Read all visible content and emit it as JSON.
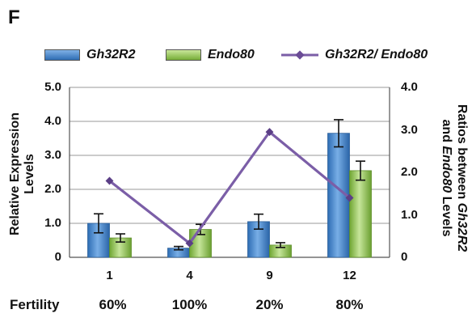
{
  "panel_label": "F",
  "chart_data": {
    "type": "bar",
    "categories": [
      "1",
      "4",
      "9",
      "12"
    ],
    "series": [
      {
        "name": "Gh32R2",
        "kind": "bar",
        "axis": "left",
        "values": [
          1.0,
          0.27,
          1.05,
          3.65
        ],
        "errors": [
          0.28,
          0.05,
          0.22,
          0.4
        ],
        "color": "#3b7fc4"
      },
      {
        "name": "Endo80",
        "kind": "bar",
        "axis": "left",
        "values": [
          0.57,
          0.82,
          0.36,
          2.55
        ],
        "errors": [
          0.12,
          0.15,
          0.07,
          0.28
        ],
        "color": "#8fc34a"
      },
      {
        "name": "Gh32R2/ Endo80",
        "kind": "line",
        "axis": "right",
        "values": [
          1.8,
          0.33,
          2.95,
          1.4
        ],
        "color": "#7b5ea7"
      }
    ],
    "ylabel": "Relative Expression Levels",
    "ylim": [
      0,
      5
    ],
    "yticks": [
      "0",
      "1.0",
      "2.0",
      "3.0",
      "4.0",
      "5.0"
    ],
    "y2label_line1_prefix": "Ratios between ",
    "y2label_line1_italic": "Gh32R2",
    "y2label_line2_prefix": "and ",
    "y2label_line2_italic": "Endo80",
    "y2label_line2_suffix": " Levels",
    "y2lim": [
      0,
      4
    ],
    "y2ticks": [
      "0",
      "1.0",
      "2.0",
      "3.0",
      "4.0"
    ],
    "grid": true,
    "legend_position": "top"
  },
  "fertility": {
    "label": "Fertility",
    "values": [
      "60%",
      "100%",
      "20%",
      "80%"
    ]
  }
}
